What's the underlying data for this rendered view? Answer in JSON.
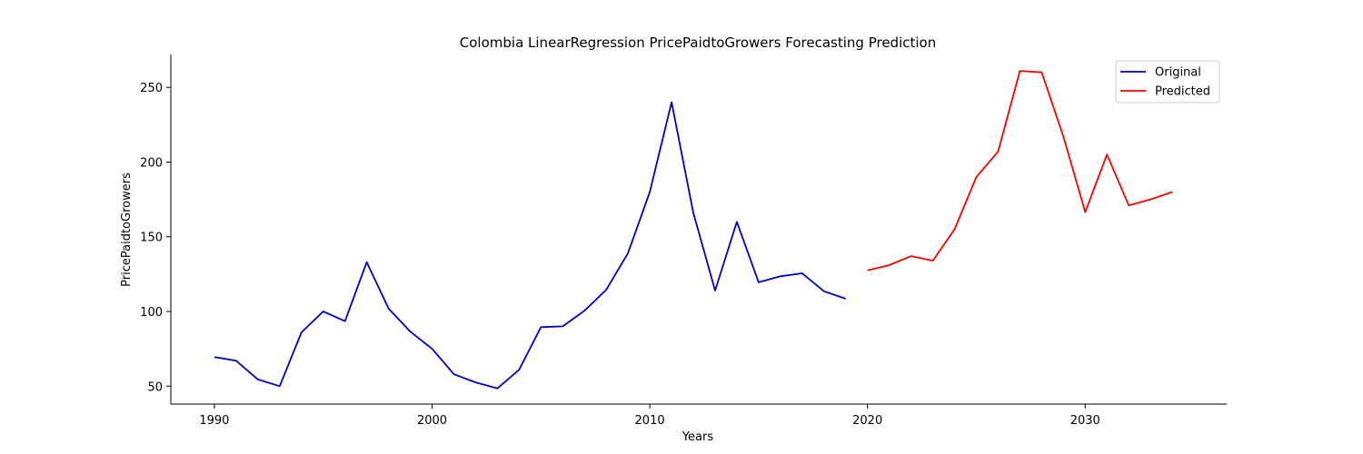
{
  "chart_data": {
    "type": "line",
    "title": "Colombia LinearRegression PricePaidtoGrowers Forecasting Prediction",
    "xlabel": "Years",
    "ylabel": "PricePaidtoGrowers",
    "xlim": [
      1988,
      2036.5
    ],
    "ylim": [
      38,
      272
    ],
    "xticks": [
      1990,
      2000,
      2010,
      2020,
      2030
    ],
    "yticks": [
      50,
      100,
      150,
      200,
      250
    ],
    "grid": false,
    "legend": "top-right",
    "series": [
      {
        "name": "Original",
        "color": "#0000cc",
        "x": [
          1990,
          1991,
          1992,
          1993,
          1994,
          1995,
          1996,
          1997,
          1998,
          1999,
          2000,
          2001,
          2002,
          2003,
          2004,
          2005,
          2006,
          2007,
          2008,
          2009,
          2010,
          2011,
          2012,
          2013,
          2014,
          2015,
          2016,
          2017,
          2018,
          2019
        ],
        "y": [
          69.5,
          67,
          54.5,
          50,
          86,
          100,
          93.5,
          133,
          102,
          86.5,
          75,
          58,
          52.5,
          48.5,
          61,
          89.5,
          90,
          100.5,
          114.5,
          139,
          180,
          240,
          166,
          114,
          160,
          119.5,
          123.5,
          125.5,
          113.5,
          108.5
        ]
      },
      {
        "name": "Predicted",
        "color": "#ff0000",
        "x": [
          2020,
          2021,
          2022,
          2023,
          2024,
          2025,
          2026,
          2027,
          2028,
          2029,
          2030,
          2031,
          2032,
          2033,
          2034
        ],
        "y": [
          127.5,
          131,
          137,
          134,
          155,
          190,
          207,
          261,
          260,
          217,
          166.5,
          205,
          171,
          175,
          180
        ]
      }
    ]
  }
}
